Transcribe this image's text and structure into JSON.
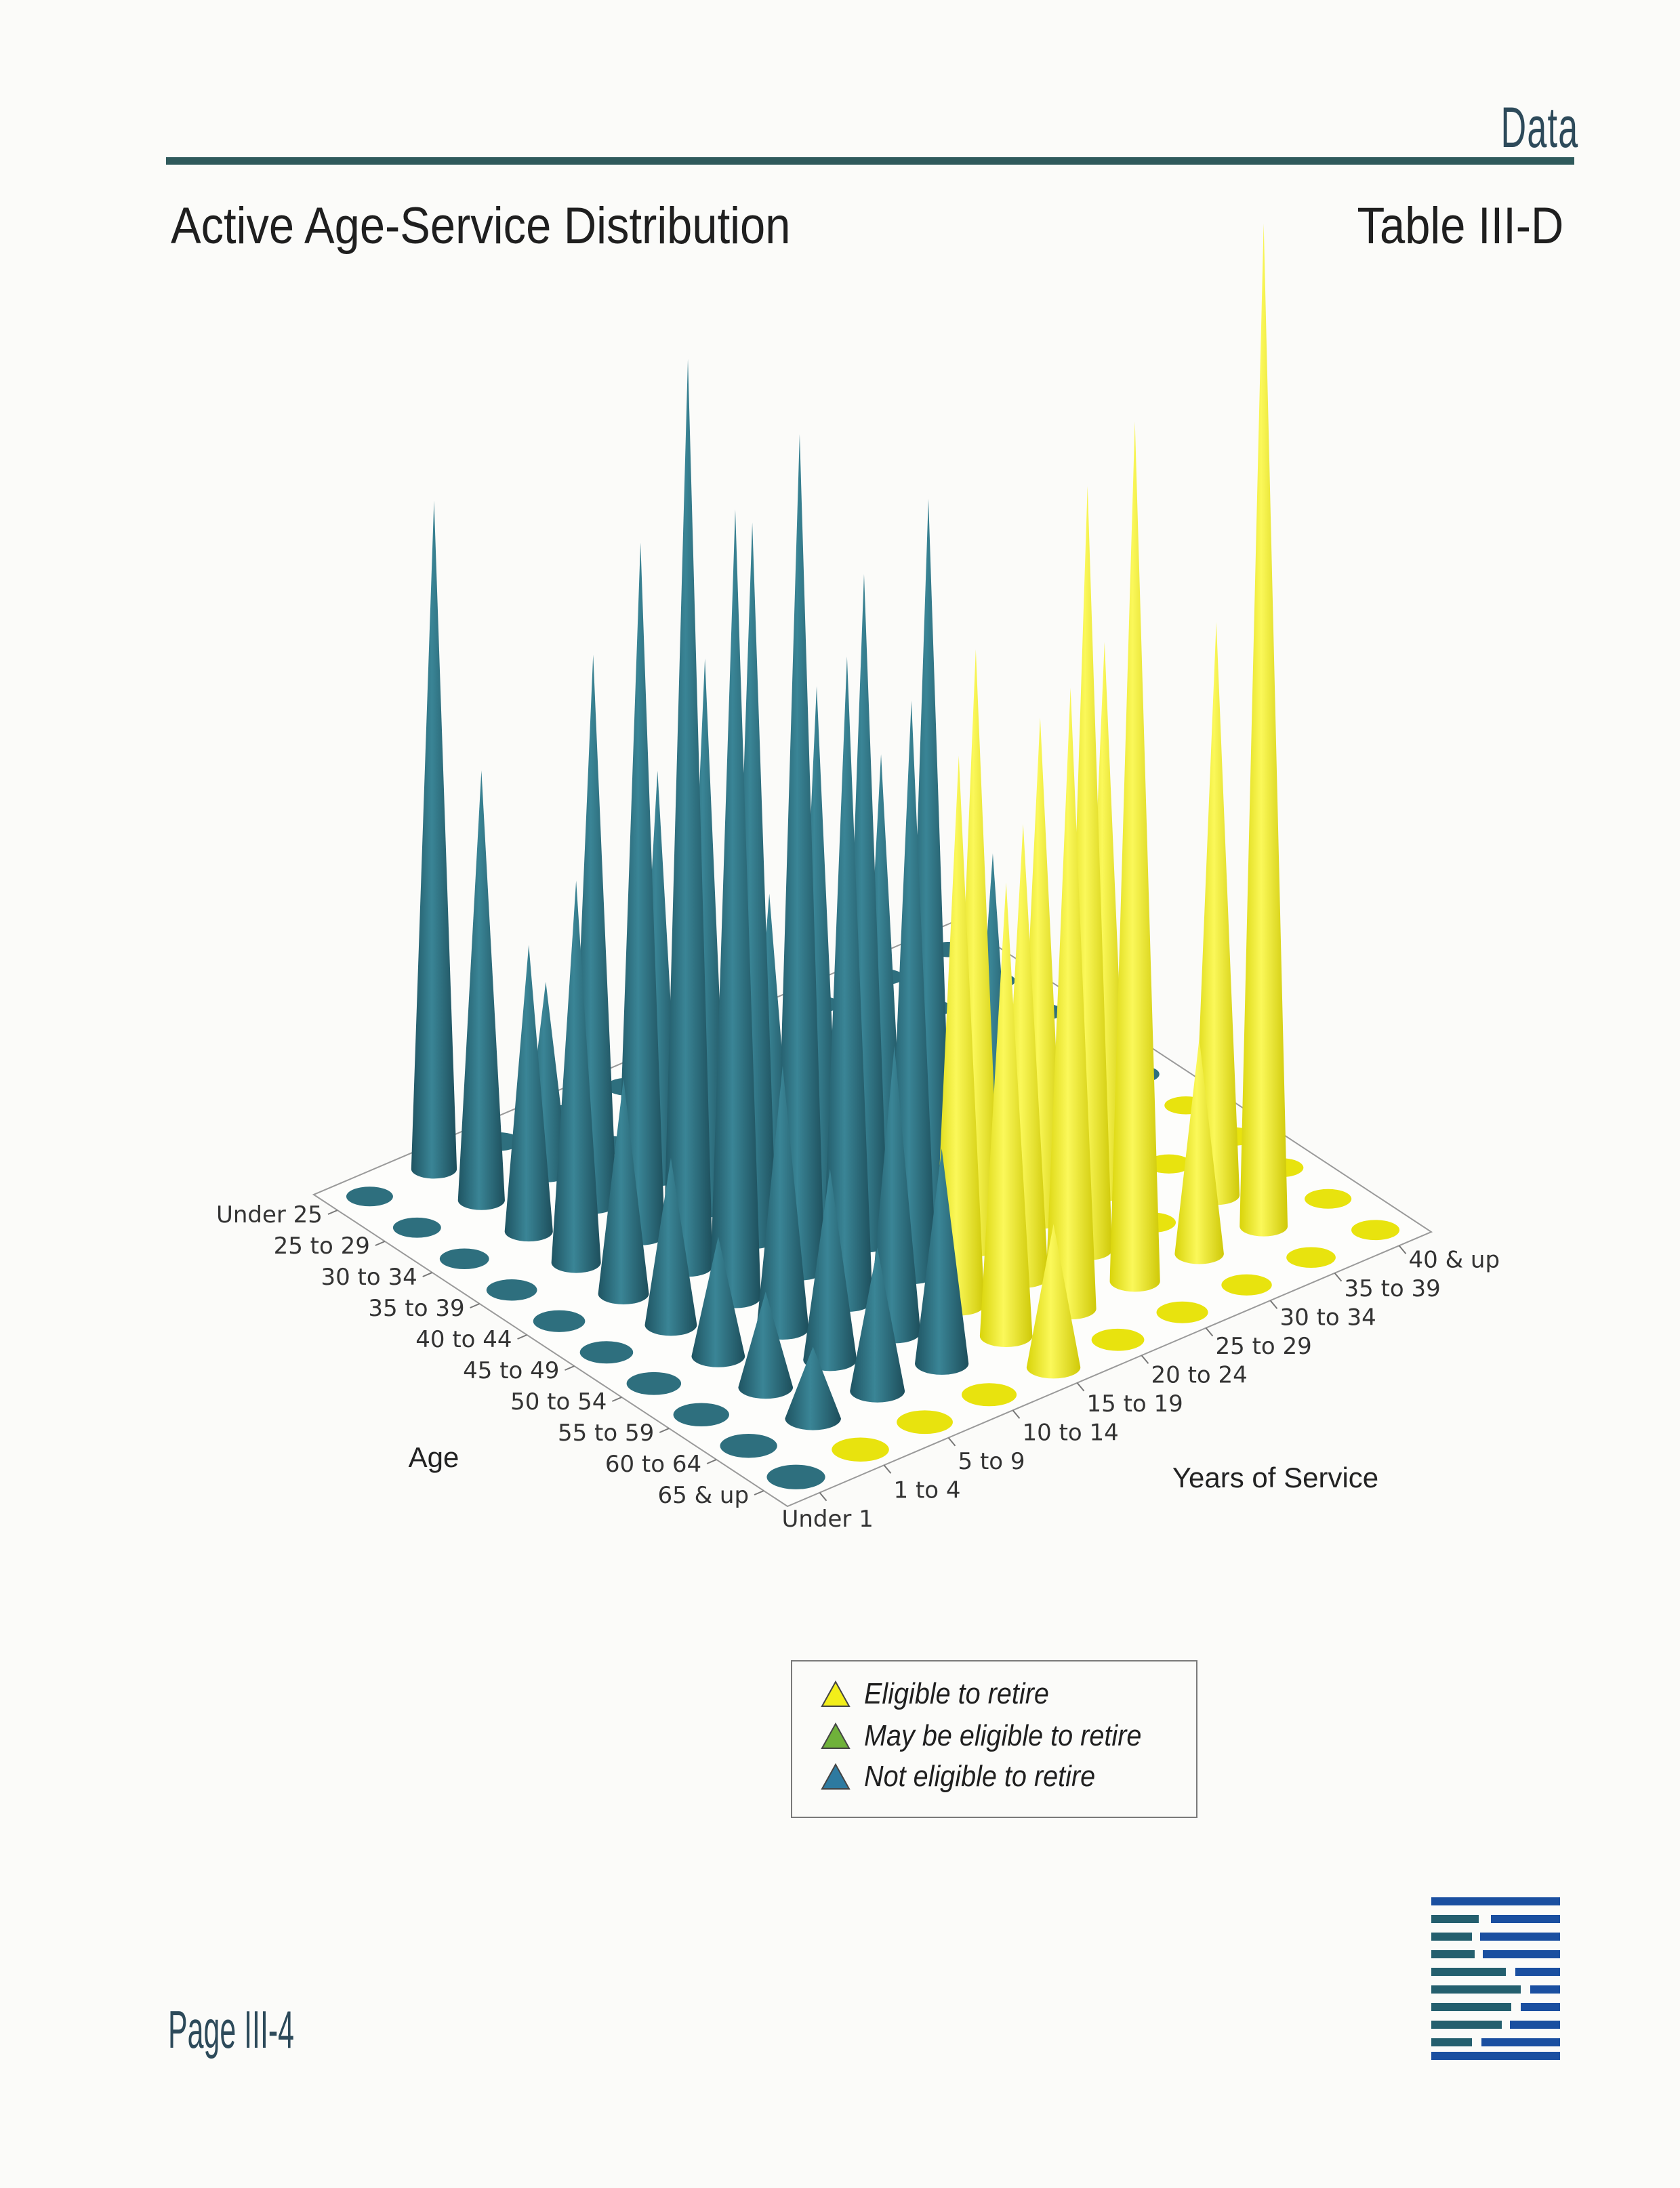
{
  "header": {
    "section_word": "Data"
  },
  "page": {
    "title": "Active Age-Service Distribution",
    "table_id": "Table III-D",
    "page_number": "Page III-4"
  },
  "colors": {
    "eligible": "#f2ee1a",
    "may_be_eligible": "#6fb13a",
    "not_eligible": "#2e6f7e",
    "rule": "#2f5a5c",
    "logo": "#1a4fa0"
  },
  "legend": {
    "items": [
      {
        "label": "Eligible to retire",
        "color": "#f2ee1a"
      },
      {
        "label": "May be eligible to retire",
        "color": "#6fb13a"
      },
      {
        "label": "Not eligible to retire",
        "color": "#2e6f7e"
      }
    ]
  },
  "chart_data": {
    "type": "3d-cone",
    "title": "",
    "xlabel": "Age",
    "ylabel": "Years of Service",
    "age_categories": [
      "Under 25",
      "25 to 29",
      "30 to 34",
      "35 to 39",
      "40 to 44",
      "45 to 49",
      "50 to 54",
      "55 to 59",
      "60 to 64",
      "65 & up"
    ],
    "service_categories": [
      "Under 1",
      "1 to 4",
      "5 to 9",
      "10 to 14",
      "15 to 19",
      "20 to 24",
      "25 to 29",
      "30 to 34",
      "35 to 39",
      "40 & up"
    ],
    "status_legend": {
      "E": "Eligible to retire",
      "M": "May be eligible to retire",
      "N": "Not eligible to retire"
    },
    "status": [
      [
        "N",
        "N",
        "N",
        "N",
        "N",
        "N",
        "N",
        "N",
        "N",
        "N"
      ],
      [
        "N",
        "N",
        "N",
        "N",
        "N",
        "N",
        "N",
        "N",
        "N",
        "N"
      ],
      [
        "N",
        "N",
        "N",
        "N",
        "N",
        "N",
        "N",
        "N",
        "N",
        "N"
      ],
      [
        "N",
        "N",
        "N",
        "N",
        "N",
        "N",
        "N",
        "N",
        "N",
        "N"
      ],
      [
        "N",
        "N",
        "N",
        "N",
        "N",
        "N",
        "N",
        "N",
        "N",
        "N"
      ],
      [
        "N",
        "N",
        "N",
        "N",
        "N",
        "N",
        "N",
        "E",
        "E",
        "E"
      ],
      [
        "N",
        "N",
        "N",
        "N",
        "N",
        "E",
        "E",
        "E",
        "E",
        "E"
      ],
      [
        "N",
        "N",
        "N",
        "N",
        "E",
        "E",
        "E",
        "E",
        "E",
        "E"
      ],
      [
        "N",
        "N",
        "N",
        "N",
        "E",
        "E",
        "E",
        "E",
        "E",
        "E"
      ],
      [
        "N",
        "E",
        "E",
        "E",
        "E",
        "E",
        "E",
        "E",
        "E",
        "E"
      ]
    ],
    "values": [
      [
        0,
        140,
        0,
        0,
        0,
        0,
        0,
        0,
        0,
        0
      ],
      [
        0,
        90,
        40,
        0,
        0,
        0,
        0,
        0,
        0,
        0
      ],
      [
        0,
        60,
        115,
        85,
        0,
        0,
        0,
        0,
        0,
        0
      ],
      [
        0,
        80,
        145,
        115,
        60,
        0,
        0,
        0,
        0,
        0
      ],
      [
        0,
        45,
        190,
        150,
        110,
        90,
        0,
        0,
        0,
        0
      ],
      [
        0,
        35,
        165,
        175,
        140,
        150,
        70,
        0,
        0,
        0
      ],
      [
        0,
        25,
        55,
        135,
        120,
        125,
        105,
        115,
        0,
        0
      ],
      [
        0,
        20,
        40,
        60,
        115,
        95,
        160,
        0,
        120,
        0
      ],
      [
        0,
        15,
        30,
        45,
        95,
        130,
        180,
        45,
        210,
        0
      ],
      [
        0,
        0,
        0,
        0,
        30,
        0,
        0,
        0,
        0,
        0
      ]
    ],
    "zlim": [
      0,
      210
    ],
    "grid": false
  }
}
